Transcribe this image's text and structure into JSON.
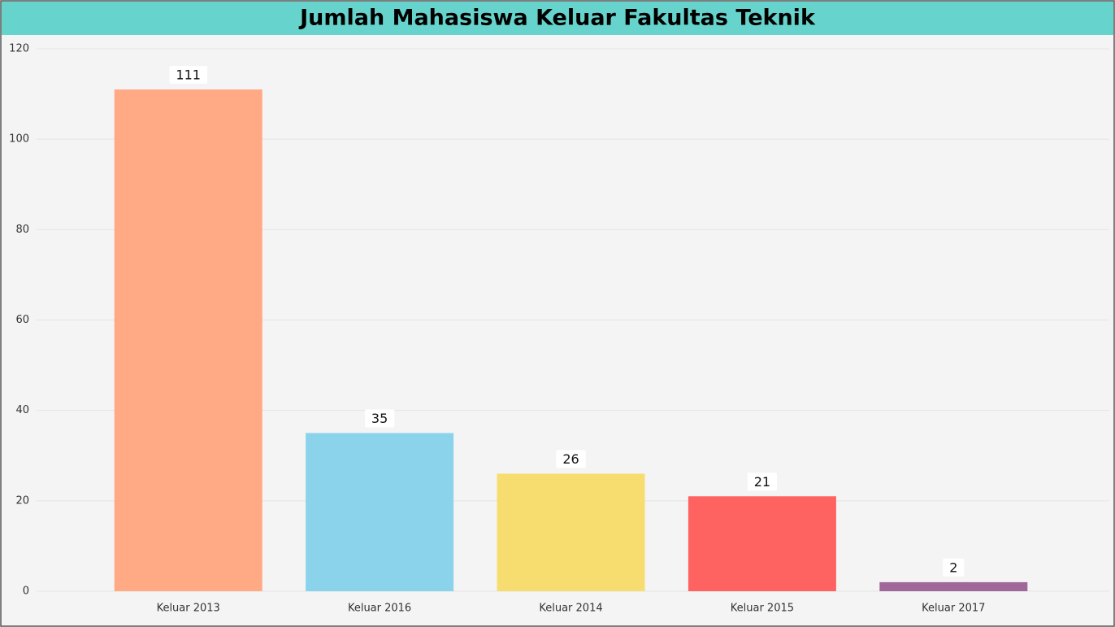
{
  "chart_data": {
    "type": "bar",
    "title": "Jumlah Mahasiswa Keluar Fakultas Teknik",
    "categories": [
      "Keluar 2013",
      "Keluar 2016",
      "Keluar 2014",
      "Keluar 2015",
      "Keluar 2017"
    ],
    "values": [
      111,
      35,
      26,
      21,
      2
    ],
    "colors": [
      "#ffa985",
      "#8bd3eb",
      "#f7dc6f",
      "#ff6361",
      "#a0679a"
    ],
    "ylim": [
      0,
      120
    ],
    "yticks": [
      0,
      20,
      40,
      60,
      80,
      100,
      120
    ],
    "grid": true
  }
}
